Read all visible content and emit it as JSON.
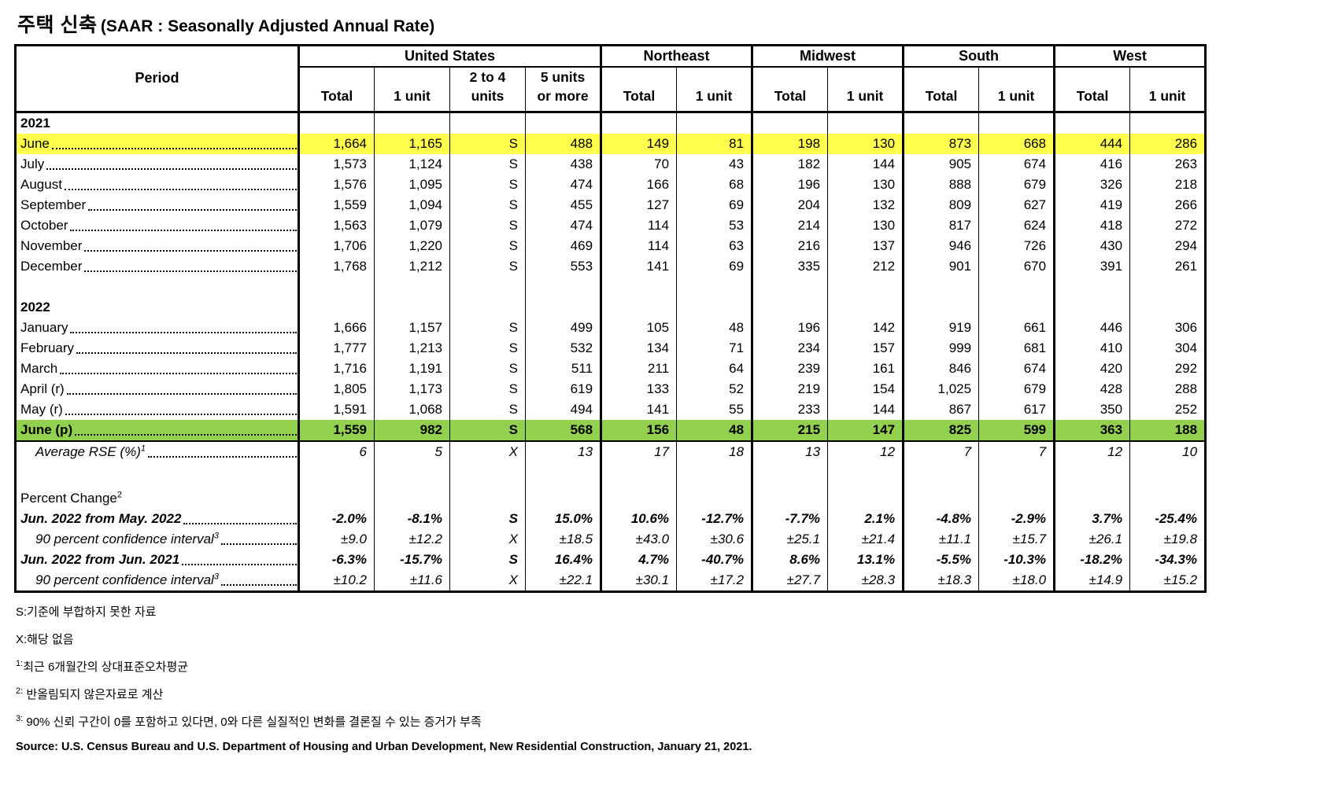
{
  "title": {
    "korean": "주택 신축",
    "english": "(SAAR : Seasonally Adjusted Annual Rate)"
  },
  "table": {
    "period_header": "Period",
    "groups": [
      {
        "label": "United States",
        "subcols": [
          "Total",
          "1 unit",
          "2 to 4|units",
          "5 units|or more"
        ]
      },
      {
        "label": "Northeast",
        "subcols": [
          "Total",
          "1 unit"
        ]
      },
      {
        "label": "Midwest",
        "subcols": [
          "Total",
          "1 unit"
        ]
      },
      {
        "label": "South",
        "subcols": [
          "Total",
          "1 unit"
        ]
      },
      {
        "label": "West",
        "subcols": [
          "Total",
          "1 unit"
        ]
      }
    ],
    "rows": [
      {
        "type": "year",
        "label": "2021"
      },
      {
        "type": "data",
        "label": "June",
        "highlight": "yellow",
        "values": [
          "1,664",
          "1,165",
          "S",
          "488",
          "149",
          "81",
          "198",
          "130",
          "873",
          "668",
          "444",
          "286"
        ]
      },
      {
        "type": "data",
        "label": "July",
        "values": [
          "1,573",
          "1,124",
          "S",
          "438",
          "70",
          "43",
          "182",
          "144",
          "905",
          "674",
          "416",
          "263"
        ]
      },
      {
        "type": "data",
        "label": "August",
        "values": [
          "1,576",
          "1,095",
          "S",
          "474",
          "166",
          "68",
          "196",
          "130",
          "888",
          "679",
          "326",
          "218"
        ]
      },
      {
        "type": "data",
        "label": "September",
        "values": [
          "1,559",
          "1,094",
          "S",
          "455",
          "127",
          "69",
          "204",
          "132",
          "809",
          "627",
          "419",
          "266"
        ]
      },
      {
        "type": "data",
        "label": "October",
        "values": [
          "1,563",
          "1,079",
          "S",
          "474",
          "114",
          "53",
          "214",
          "130",
          "817",
          "624",
          "418",
          "272"
        ]
      },
      {
        "type": "data",
        "label": "November",
        "values": [
          "1,706",
          "1,220",
          "S",
          "469",
          "114",
          "63",
          "216",
          "137",
          "946",
          "726",
          "430",
          "294"
        ]
      },
      {
        "type": "data",
        "label": "December",
        "values": [
          "1,768",
          "1,212",
          "S",
          "553",
          "141",
          "69",
          "335",
          "212",
          "901",
          "670",
          "391",
          "261"
        ]
      },
      {
        "type": "blank"
      },
      {
        "type": "year",
        "label": "2022"
      },
      {
        "type": "data",
        "label": "January",
        "values": [
          "1,666",
          "1,157",
          "S",
          "499",
          "105",
          "48",
          "196",
          "142",
          "919",
          "661",
          "446",
          "306"
        ]
      },
      {
        "type": "data",
        "label": "February",
        "values": [
          "1,777",
          "1,213",
          "S",
          "532",
          "134",
          "71",
          "234",
          "157",
          "999",
          "681",
          "410",
          "304"
        ]
      },
      {
        "type": "data",
        "label": "March",
        "values": [
          "1,716",
          "1,191",
          "S",
          "511",
          "211",
          "64",
          "239",
          "161",
          "846",
          "674",
          "420",
          "292"
        ]
      },
      {
        "type": "data",
        "label": "April (r)",
        "values": [
          "1,805",
          "1,173",
          "S",
          "619",
          "133",
          "52",
          "219",
          "154",
          "1,025",
          "679",
          "428",
          "288"
        ]
      },
      {
        "type": "data",
        "label": "May (r)",
        "values": [
          "1,591",
          "1,068",
          "S",
          "494",
          "141",
          "55",
          "233",
          "144",
          "867",
          "617",
          "350",
          "252"
        ]
      },
      {
        "type": "data",
        "label": "June (p)",
        "highlight": "green",
        "bold": true,
        "bottom_border": true,
        "values": [
          "1,559",
          "982",
          "S",
          "568",
          "156",
          "48",
          "215",
          "147",
          "825",
          "599",
          "363",
          "188"
        ]
      },
      {
        "type": "data",
        "label": "Average RSE (%)",
        "label_sup": "1",
        "italic": true,
        "indent": true,
        "values": [
          "6",
          "5",
          "X",
          "13",
          "17",
          "18",
          "13",
          "12",
          "7",
          "7",
          "12",
          "10"
        ]
      },
      {
        "type": "blank",
        "tall": true
      },
      {
        "type": "label",
        "label": "Percent Change",
        "label_sup": "2"
      },
      {
        "type": "data",
        "label": "Jun. 2022 from May. 2022",
        "bold": true,
        "italic": true,
        "values": [
          "-2.0%",
          "-8.1%",
          "S",
          "15.0%",
          "10.6%",
          "-12.7%",
          "-7.7%",
          "2.1%",
          "-4.8%",
          "-2.9%",
          "3.7%",
          "-25.4%"
        ]
      },
      {
        "type": "data",
        "label": "90 percent confidence interval",
        "label_sup": "3",
        "italic": true,
        "indent": true,
        "values": [
          "±9.0",
          "±12.2",
          "X",
          "±18.5",
          "±43.0",
          "±30.6",
          "±25.1",
          "±21.4",
          "±11.1",
          "±15.7",
          "±26.1",
          "±19.8"
        ]
      },
      {
        "type": "data",
        "label": "Jun. 2022 from Jun. 2021",
        "bold": true,
        "italic": true,
        "values": [
          "-6.3%",
          "-15.7%",
          "S",
          "16.4%",
          "4.7%",
          "-40.7%",
          "8.6%",
          "13.1%",
          "-5.5%",
          "-10.3%",
          "-18.2%",
          "-34.3%"
        ]
      },
      {
        "type": "data",
        "label": "90 percent confidence interval",
        "label_sup": "3",
        "italic": true,
        "indent": true,
        "values": [
          "±10.2",
          "±11.6",
          "X",
          "±22.1",
          "±30.1",
          "±17.2",
          "±27.7",
          "±28.3",
          "±18.3",
          "±18.0",
          "±14.9",
          "±15.2"
        ]
      }
    ]
  },
  "footnotes": [
    {
      "sup": "",
      "text": "S:기준에 부합하지 못한 자료"
    },
    {
      "sup": "",
      "text": "X:해당 없음"
    },
    {
      "sup": "1:",
      "text": "최근 6개월간의 상대표준오차평균"
    },
    {
      "sup": "2:",
      "text": " 반올림되지 않은자료로 계산"
    },
    {
      "sup": "3:",
      "text": " 90% 신뢰 구간이 0를 포함하고 있다면, 0와 다른 실질적인 변화를 결론질 수 있는 증거가 부족"
    }
  ],
  "source": "Source: U.S. Census Bureau and U.S. Department of Housing and Urban Development, New Residential Construction, January 21, 2021.",
  "colors": {
    "highlight_yellow": "#FFFF4D",
    "highlight_green": "#92D050"
  }
}
